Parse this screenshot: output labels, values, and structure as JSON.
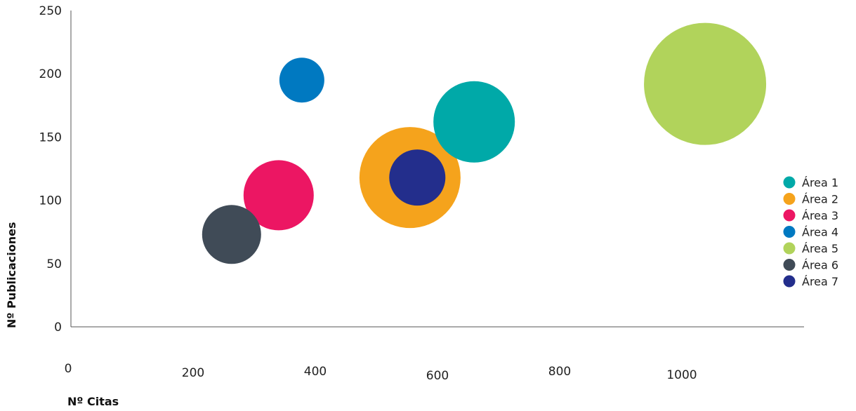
{
  "chart_data": {
    "type": "scatter",
    "title": "",
    "xlabel": "Nº Citas",
    "ylabel": "Nº Publicaciones",
    "xlim": [
      0,
      1200
    ],
    "ylim": [
      0,
      250
    ],
    "x_ticks": [
      "0",
      "200",
      "400",
      "600",
      "800",
      "1000"
    ],
    "y_ticks": [
      "0",
      "50",
      "100",
      "150",
      "200",
      "250"
    ],
    "grid": false,
    "legend_position": "right",
    "series": [
      {
        "name": "Área 1",
        "x": 660,
        "y": 162,
        "size": 58,
        "color": "#00a9a8"
      },
      {
        "name": "Área 2",
        "x": 555,
        "y": 118,
        "size": 72,
        "color": "#f5a31c"
      },
      {
        "name": "Área 3",
        "x": 340,
        "y": 104,
        "size": 50,
        "color": "#ec1663"
      },
      {
        "name": "Área 4",
        "x": 378,
        "y": 195,
        "size": 32,
        "color": "#0079c1"
      },
      {
        "name": "Área 5",
        "x": 1038,
        "y": 192,
        "size": 87,
        "color": "#b1d35b"
      },
      {
        "name": "Área 6",
        "x": 263,
        "y": 73,
        "size": 42,
        "color": "#404b57"
      },
      {
        "name": "Área 7",
        "x": 567,
        "y": 118,
        "size": 40,
        "color": "#232e8c"
      }
    ]
  }
}
